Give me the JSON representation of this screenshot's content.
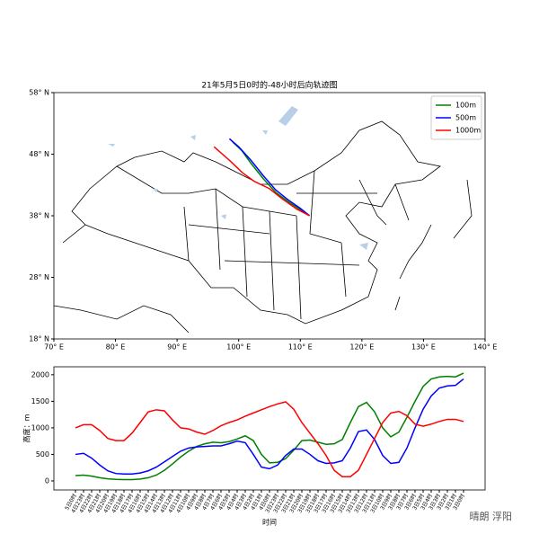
{
  "chart_data": [
    {
      "type": "map",
      "title": "21年5月5日0时的-48小时后向轨迹图",
      "xlim": [
        70,
        140
      ],
      "ylim": [
        18,
        58
      ],
      "xticks": [
        {
          "value": 70,
          "label": "70° E"
        },
        {
          "value": 80,
          "label": "80° E"
        },
        {
          "value": 90,
          "label": "90° E"
        },
        {
          "value": 100,
          "label": "100° E"
        },
        {
          "value": 110,
          "label": "110° E"
        },
        {
          "value": 120,
          "label": "120° E"
        },
        {
          "value": 130,
          "label": "130° E"
        },
        {
          "value": 140,
          "label": "140° E"
        }
      ],
      "yticks": [
        {
          "value": 18,
          "label": "18° N"
        },
        {
          "value": 28,
          "label": "28° N"
        },
        {
          "value": 38,
          "label": "38° N"
        },
        {
          "value": 48,
          "label": "48° N"
        },
        {
          "value": 58,
          "label": "58° N"
        }
      ],
      "legend": "upper right",
      "series": [
        {
          "name": "100m",
          "color": "#008000",
          "x": [
            111.5,
            110,
            108,
            106,
            104,
            102,
            100.5,
            99
          ],
          "y": [
            38,
            39,
            40.3,
            41.8,
            44,
            46.5,
            48.6,
            50
          ]
        },
        {
          "name": "500m",
          "color": "#0000ff",
          "x": [
            111.5,
            110,
            108,
            106,
            104,
            102,
            100,
            98.5
          ],
          "y": [
            38,
            39.2,
            40.6,
            42.2,
            44.5,
            47,
            49.2,
            50.5
          ]
        },
        {
          "name": "1000m",
          "color": "#ff0000",
          "x": [
            111.5,
            109.4,
            107,
            105,
            102.5,
            100.6,
            98.5,
            96
          ],
          "y": [
            38,
            39.1,
            40.8,
            42.4,
            43.6,
            45,
            47,
            49.2
          ]
        }
      ]
    },
    {
      "type": "line",
      "xlabel": "时间",
      "ylabel": "高度：m",
      "categories": [
        "5日0时",
        "4日23时",
        "4日22时",
        "4日21时",
        "4日20时",
        "4日19时",
        "4日18时",
        "4日17时",
        "4日16时",
        "4日15时",
        "4日14时",
        "4日13时",
        "4日12时",
        "4日11时",
        "4日10时",
        "4日9时",
        "4日8时",
        "4日7时",
        "4日6时",
        "4日5时",
        "4日4时",
        "4日3时",
        "4日2时",
        "4日1时",
        "4日0时",
        "3日23时",
        "3日22时",
        "3日21时",
        "3日20时",
        "3日19时",
        "3日18时",
        "3日17时",
        "3日16时",
        "3日15时",
        "3日14时",
        "3日13时",
        "3日12时",
        "3日11时",
        "3日10时",
        "3日9时",
        "3日8时",
        "3日7时",
        "3日6时",
        "3日5时",
        "3日4时",
        "3日3时",
        "3日2时",
        "3日1时",
        "3日0时"
      ],
      "ylim": [
        -170,
        2150
      ],
      "yticks": [
        0,
        500,
        1000,
        1500,
        2000
      ],
      "series": [
        {
          "name": "100m",
          "color": "#008000",
          "values": [
            100,
            110,
            90,
            60,
            40,
            30,
            25,
            25,
            35,
            60,
            110,
            200,
            320,
            450,
            560,
            650,
            700,
            730,
            720,
            740,
            790,
            850,
            760,
            500,
            340,
            350,
            420,
            580,
            760,
            770,
            730,
            690,
            700,
            780,
            1100,
            1400,
            1480,
            1300,
            1000,
            830,
            920,
            1200,
            1500,
            1780,
            1920,
            1960,
            1970,
            1960,
            2030
          ]
        },
        {
          "name": "500m",
          "color": "#0000ff",
          "values": [
            500,
            520,
            430,
            300,
            190,
            140,
            130,
            130,
            150,
            190,
            260,
            360,
            460,
            560,
            620,
            640,
            650,
            660,
            660,
            700,
            750,
            720,
            500,
            260,
            230,
            300,
            480,
            600,
            600,
            500,
            380,
            330,
            340,
            380,
            620,
            930,
            960,
            780,
            480,
            330,
            350,
            620,
            1000,
            1350,
            1600,
            1750,
            1790,
            1800,
            1920
          ]
        },
        {
          "name": "1000m",
          "color": "#ff0000",
          "values": [
            1000,
            1060,
            1060,
            950,
            800,
            760,
            760,
            900,
            1100,
            1300,
            1340,
            1320,
            1150,
            1000,
            980,
            920,
            880,
            950,
            1040,
            1100,
            1150,
            1220,
            1280,
            1340,
            1400,
            1450,
            1490,
            1350,
            1100,
            900,
            700,
            480,
            200,
            80,
            80,
            200,
            500,
            800,
            1100,
            1280,
            1310,
            1230,
            1070,
            1030,
            1070,
            1120,
            1160,
            1160,
            1120
          ]
        }
      ]
    }
  ],
  "watermark": "晴朗 浮阳"
}
